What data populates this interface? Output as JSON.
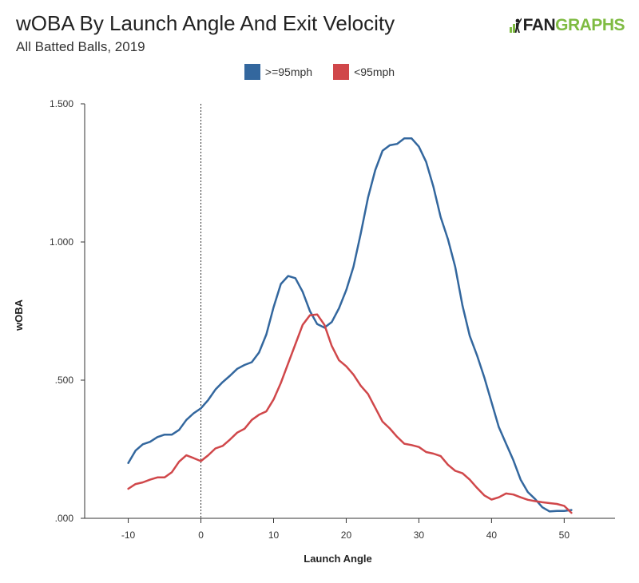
{
  "header": {
    "title": "wOBA By Launch Angle And Exit Velocity",
    "subtitle": "All Batted Balls, 2019",
    "logo_left": "FAN",
    "logo_right": "GRAPHS"
  },
  "colors": {
    "series_fast": "#33679e",
    "series_slow": "#d0474a",
    "logo_green": "#7fbb42"
  },
  "chart_data": {
    "type": "line",
    "title": "wOBA By Launch Angle And Exit Velocity",
    "subtitle": "All Batted Balls, 2019",
    "xlabel": "Launch Angle",
    "ylabel": "wOBA",
    "xlim": [
      -16,
      57
    ],
    "ylim": [
      0,
      1.5
    ],
    "x_ticks": [
      -10,
      0,
      10,
      20,
      30,
      40,
      50
    ],
    "y_ticks": [
      ".000",
      ".500",
      "1.000",
      "1.500"
    ],
    "y_tick_values": [
      0,
      0.5,
      1.0,
      1.5
    ],
    "reference_line_x": 0,
    "grid": false,
    "legend_position": "top-center",
    "x": [
      -10,
      -9,
      -8,
      -7,
      -6,
      -5,
      -4,
      -3,
      -2,
      -1,
      0,
      1,
      2,
      3,
      4,
      5,
      6,
      7,
      8,
      9,
      10,
      11,
      12,
      13,
      14,
      15,
      16,
      17,
      18,
      19,
      20,
      21,
      22,
      23,
      24,
      25,
      26,
      27,
      28,
      29,
      30,
      31,
      32,
      33,
      34,
      35,
      36,
      37,
      38,
      39,
      40,
      41,
      42,
      43,
      44,
      45,
      46,
      47,
      48,
      49,
      50,
      51
    ],
    "series": [
      {
        "name": ">=95mph",
        "values": [
          0.2,
          0.245,
          0.268,
          0.277,
          0.294,
          0.303,
          0.303,
          0.32,
          0.356,
          0.38,
          0.398,
          0.428,
          0.466,
          0.493,
          0.516,
          0.541,
          0.555,
          0.565,
          0.6,
          0.665,
          0.764,
          0.848,
          0.877,
          0.869,
          0.82,
          0.75,
          0.703,
          0.69,
          0.71,
          0.76,
          0.826,
          0.91,
          1.03,
          1.16,
          1.26,
          1.33,
          1.35,
          1.355,
          1.375,
          1.375,
          1.345,
          1.29,
          1.2,
          1.09,
          1.01,
          0.91,
          0.77,
          0.66,
          0.59,
          0.51,
          0.42,
          0.33,
          0.27,
          0.21,
          0.14,
          0.095,
          0.07,
          0.04,
          0.025,
          0.027,
          0.027,
          0.03
        ]
      },
      {
        "name": "<95mph",
        "values": [
          0.107,
          0.124,
          0.13,
          0.14,
          0.148,
          0.148,
          0.167,
          0.205,
          0.228,
          0.218,
          0.207,
          0.228,
          0.253,
          0.262,
          0.285,
          0.31,
          0.324,
          0.356,
          0.375,
          0.387,
          0.43,
          0.49,
          0.56,
          0.63,
          0.7,
          0.735,
          0.738,
          0.7,
          0.624,
          0.572,
          0.55,
          0.52,
          0.48,
          0.45,
          0.4,
          0.35,
          0.325,
          0.295,
          0.27,
          0.265,
          0.258,
          0.24,
          0.234,
          0.225,
          0.194,
          0.172,
          0.163,
          0.14,
          0.11,
          0.083,
          0.068,
          0.076,
          0.09,
          0.086,
          0.076,
          0.067,
          0.062,
          0.058,
          0.055,
          0.052,
          0.045,
          0.02
        ]
      }
    ]
  }
}
